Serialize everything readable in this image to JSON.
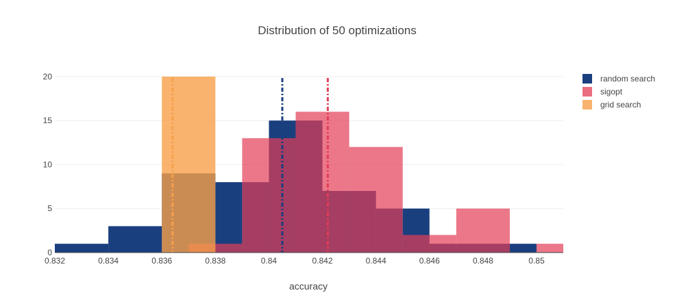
{
  "chart_data": {
    "type": "histogram",
    "title": "Distribution of 50 optimizations",
    "xlabel": "accuracy",
    "ylabel": "",
    "xlim": [
      0.832,
      0.851
    ],
    "ylim": [
      0,
      21
    ],
    "xticks": [
      0.832,
      0.834,
      0.836,
      0.838,
      0.84,
      0.842,
      0.844,
      0.846,
      0.848,
      0.85
    ],
    "xtick_labels": [
      "0.832",
      "0.834",
      "0.836",
      "0.838",
      "0.84",
      "0.842",
      "0.844",
      "0.846",
      "0.848",
      "0.85"
    ],
    "yticks": [
      0,
      5,
      10,
      15,
      20
    ],
    "ytick_labels": [
      "0",
      "5",
      "10",
      "15",
      "20"
    ],
    "grid": true,
    "legend_position": "top-right",
    "mode": "overlay",
    "series": [
      {
        "name": "random search",
        "color": "#1a3f7f",
        "opacity": 1.0,
        "bins": [
          {
            "x0": 0.832,
            "x1": 0.834,
            "count": 1
          },
          {
            "x0": 0.834,
            "x1": 0.836,
            "count": 3
          },
          {
            "x0": 0.836,
            "x1": 0.838,
            "count": 9
          },
          {
            "x0": 0.838,
            "x1": 0.839,
            "count": 8
          },
          {
            "x0": 0.839,
            "x1": 0.84,
            "count": 8
          },
          {
            "x0": 0.84,
            "x1": 0.841,
            "count": 15
          },
          {
            "x0": 0.841,
            "x1": 0.842,
            "count": 15
          },
          {
            "x0": 0.842,
            "x1": 0.843,
            "count": 7
          },
          {
            "x0": 0.843,
            "x1": 0.844,
            "count": 7
          },
          {
            "x0": 0.844,
            "x1": 0.845,
            "count": 5
          },
          {
            "x0": 0.845,
            "x1": 0.846,
            "count": 5
          },
          {
            "x0": 0.846,
            "x1": 0.847,
            "count": 1
          },
          {
            "x0": 0.847,
            "x1": 0.848,
            "count": 1
          },
          {
            "x0": 0.848,
            "x1": 0.849,
            "count": 1
          },
          {
            "x0": 0.849,
            "x1": 0.85,
            "count": 1
          }
        ],
        "mean": 0.8405,
        "mean_line_color": "#1a3f7f"
      },
      {
        "name": "sigopt",
        "color": "#e23d55",
        "opacity": 0.7,
        "bins": [
          {
            "x0": 0.837,
            "x1": 0.839,
            "count": 1
          },
          {
            "x0": 0.839,
            "x1": 0.84,
            "count": 13
          },
          {
            "x0": 0.84,
            "x1": 0.841,
            "count": 13
          },
          {
            "x0": 0.841,
            "x1": 0.842,
            "count": 16
          },
          {
            "x0": 0.842,
            "x1": 0.843,
            "count": 16
          },
          {
            "x0": 0.843,
            "x1": 0.845,
            "count": 12
          },
          {
            "x0": 0.845,
            "x1": 0.847,
            "count": 2
          },
          {
            "x0": 0.847,
            "x1": 0.849,
            "count": 5
          },
          {
            "x0": 0.849,
            "x1": 0.85,
            "count": 0
          },
          {
            "x0": 0.85,
            "x1": 0.851,
            "count": 1
          }
        ],
        "mean": 0.8422,
        "mean_line_color": "#e23d55"
      },
      {
        "name": "grid search",
        "color": "#f7a04a",
        "opacity": 0.8,
        "bins": [
          {
            "x0": 0.836,
            "x1": 0.838,
            "count": 20
          }
        ],
        "mean": 0.8364,
        "mean_line_color": "#f7a04a"
      }
    ]
  }
}
